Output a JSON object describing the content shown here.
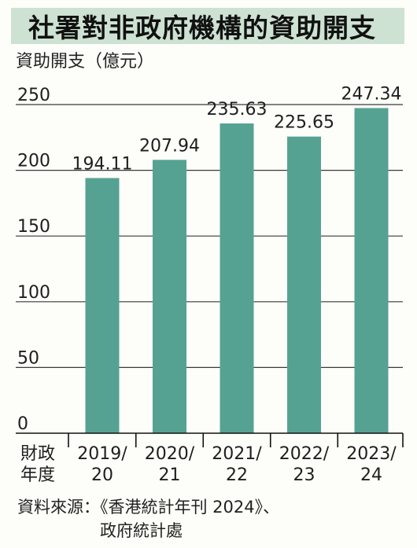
{
  "title": "社署對非政府機構的資助開支",
  "chart_data": {
    "type": "bar",
    "ylabel": "資助開支（億元）",
    "xlabel_lines": [
      "財政",
      "年度"
    ],
    "categories": [
      [
        "2019/",
        "20"
      ],
      [
        "2020/",
        "21"
      ],
      [
        "2021/",
        "22"
      ],
      [
        "2022/",
        "23"
      ],
      [
        "2023/",
        "24"
      ]
    ],
    "values": [
      194.11,
      207.94,
      235.63,
      225.65,
      247.34
    ],
    "value_labels": [
      "194.11",
      "207.94",
      "235.63",
      "225.65",
      "247.34"
    ],
    "yticks": [
      "0",
      "50",
      "100",
      "150",
      "200",
      "250"
    ],
    "ytick_values": [
      0,
      50,
      100,
      150,
      200,
      250
    ],
    "ylim": [
      0,
      250
    ],
    "grid": true,
    "bar_color": "#56a292",
    "grid_color": "#3a3a3a"
  },
  "source": "資料來源：《香港統計年刊 2024》、\n　　　　　政府統計處"
}
